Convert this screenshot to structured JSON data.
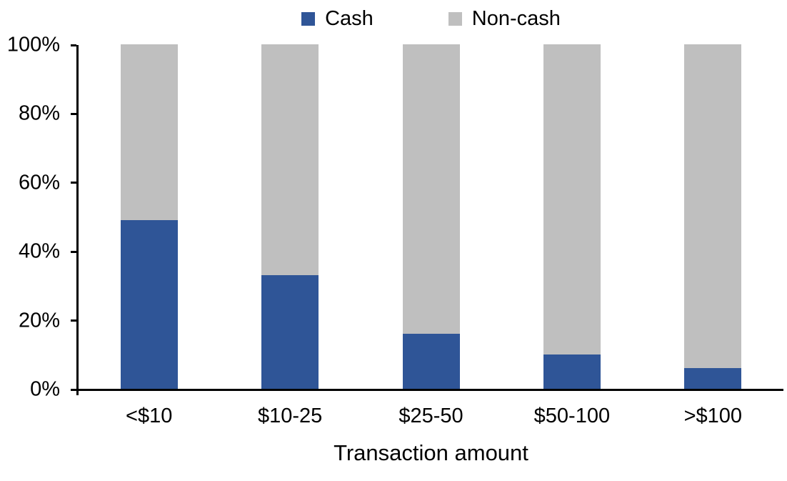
{
  "chart_data": {
    "type": "bar",
    "stacked": true,
    "stacked_to_100_percent": true,
    "title": "",
    "xlabel": "Transaction amount",
    "ylabel": "",
    "categories": [
      "<$10",
      "$10-25",
      "$25-50",
      "$50-100",
      ">$100"
    ],
    "series": [
      {
        "name": "Cash",
        "color": "#2F5597",
        "values": [
          49,
          33,
          16,
          10,
          6
        ]
      },
      {
        "name": "Non-cash",
        "color": "#BFBFBF",
        "values": [
          51,
          67,
          84,
          90,
          94
        ]
      }
    ],
    "ylim": [
      0,
      100
    ],
    "yticks": [
      0,
      20,
      40,
      60,
      80,
      100
    ],
    "ytick_labels": [
      "0%",
      "20%",
      "40%",
      "60%",
      "80%",
      "100%"
    ],
    "grid": false,
    "legend_position": "top-center"
  },
  "legend": {
    "items": [
      {
        "label": "Cash",
        "color": "#2F5597"
      },
      {
        "label": "Non-cash",
        "color": "#BFBFBF"
      }
    ]
  },
  "colors": {
    "axis": "#000000",
    "background": "#FFFFFF",
    "text": "#000000"
  }
}
